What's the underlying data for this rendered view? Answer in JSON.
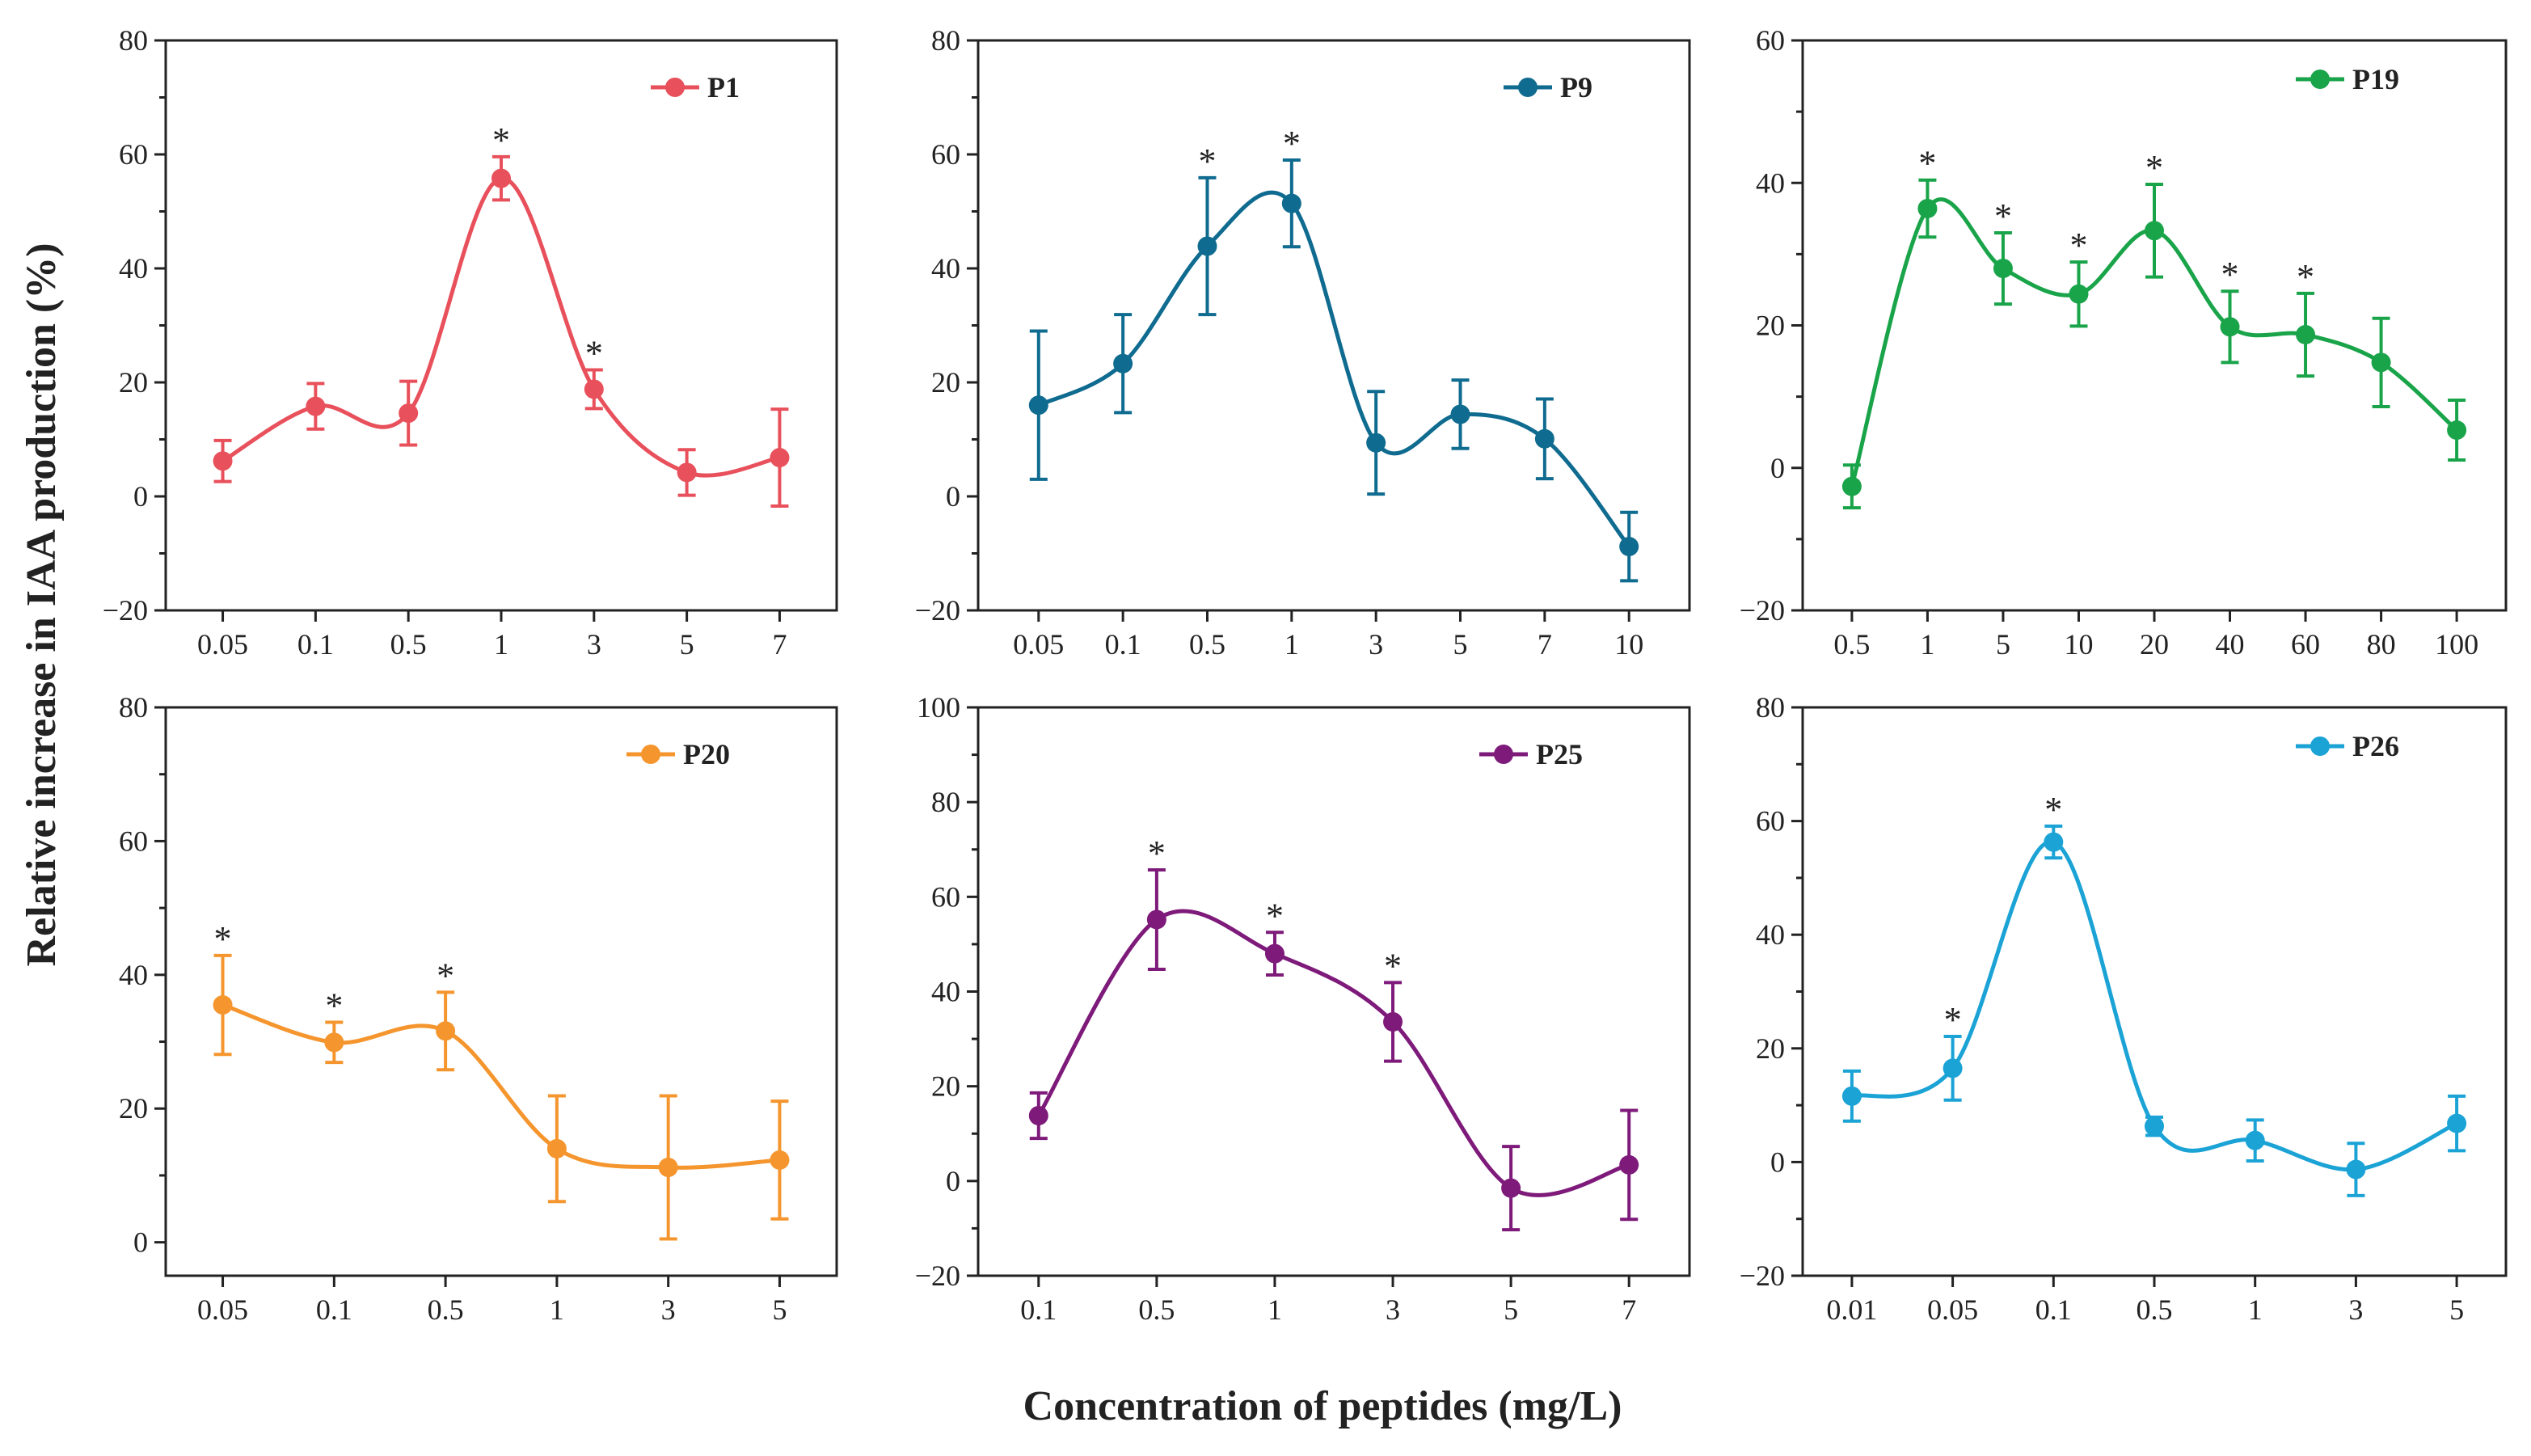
{
  "figure": {
    "ylabel": "Relative increase in IAA production (%)",
    "xlabel": "Concentration of peptides (mg/L)"
  },
  "chart_data": [
    {
      "type": "line",
      "name": "P1",
      "color": "#e8505b",
      "categories": [
        "0.05",
        "0.1",
        "0.5",
        "1",
        "3",
        "5",
        "7"
      ],
      "values": [
        6.2,
        15.8,
        14.6,
        55.8,
        18.8,
        4.2,
        6.8
      ],
      "errors": [
        3.6,
        4.0,
        5.6,
        3.8,
        3.4,
        4.0,
        8.5
      ],
      "significant": [
        false,
        false,
        false,
        true,
        true,
        false,
        false
      ],
      "ylim": [
        -20,
        80
      ],
      "yticks": [
        -20,
        0,
        20,
        40,
        60,
        80
      ]
    },
    {
      "type": "line",
      "name": "P9",
      "color": "#0f6b8f",
      "categories": [
        "0.05",
        "0.1",
        "0.5",
        "1",
        "3",
        "5",
        "7",
        "10"
      ],
      "values": [
        16.0,
        23.3,
        43.9,
        51.4,
        9.4,
        14.4,
        10.1,
        -8.8
      ],
      "errors": [
        13.0,
        8.6,
        12.0,
        7.6,
        9.0,
        6.0,
        7.0,
        6.0
      ],
      "significant": [
        false,
        false,
        true,
        true,
        false,
        false,
        false,
        false
      ],
      "ylim": [
        -20,
        80
      ],
      "yticks": [
        -20,
        0,
        20,
        40,
        60,
        80
      ]
    },
    {
      "type": "line",
      "name": "P19",
      "color": "#1aa44a",
      "categories": [
        "0.5",
        "1",
        "5",
        "10",
        "20",
        "40",
        "60",
        "80",
        "100"
      ],
      "values": [
        -2.6,
        36.4,
        28.0,
        24.4,
        33.3,
        19.8,
        18.7,
        14.8,
        5.3
      ],
      "errors": [
        3.0,
        4.0,
        5.0,
        4.5,
        6.5,
        5.0,
        5.8,
        6.2,
        4.2
      ],
      "significant": [
        false,
        true,
        true,
        true,
        true,
        true,
        true,
        false,
        false
      ],
      "ylim": [
        -20,
        60
      ],
      "yticks": [
        -20,
        0,
        20,
        40,
        60
      ]
    },
    {
      "type": "line",
      "name": "P20",
      "color": "#f5952e",
      "categories": [
        "0.05",
        "0.1",
        "0.5",
        "1",
        "3",
        "5"
      ],
      "values": [
        35.5,
        29.9,
        31.6,
        14.0,
        11.2,
        12.3
      ],
      "errors": [
        7.4,
        3.0,
        5.8,
        7.9,
        10.7,
        8.8
      ],
      "significant": [
        true,
        true,
        true,
        false,
        false,
        false
      ],
      "ylim": [
        -5,
        80
      ],
      "yticks": [
        0,
        20,
        40,
        60,
        80
      ]
    },
    {
      "type": "line",
      "name": "P25",
      "color": "#7e1a7a",
      "categories": [
        "0.1",
        "0.5",
        "1",
        "3",
        "5",
        "7"
      ],
      "values": [
        13.8,
        55.2,
        48.0,
        33.6,
        -1.5,
        3.4
      ],
      "errors": [
        4.8,
        10.5,
        4.5,
        8.3,
        8.8,
        11.5
      ],
      "significant": [
        false,
        true,
        true,
        true,
        false,
        false
      ],
      "ylim": [
        -20,
        100
      ],
      "yticks": [
        -20,
        0,
        20,
        40,
        60,
        80,
        100
      ]
    },
    {
      "type": "line",
      "name": "P26",
      "color": "#1ba3d6",
      "categories": [
        "0.01",
        "0.05",
        "0.1",
        "0.5",
        "1",
        "3",
        "5"
      ],
      "values": [
        11.6,
        16.5,
        56.3,
        6.3,
        3.8,
        -1.3,
        6.8
      ],
      "errors": [
        4.4,
        5.6,
        2.8,
        1.6,
        3.6,
        4.6,
        4.8
      ],
      "significant": [
        false,
        true,
        true,
        false,
        false,
        false,
        false
      ],
      "ylim": [
        -20,
        80
      ],
      "yticks": [
        -20,
        0,
        20,
        40,
        60,
        80
      ]
    }
  ]
}
